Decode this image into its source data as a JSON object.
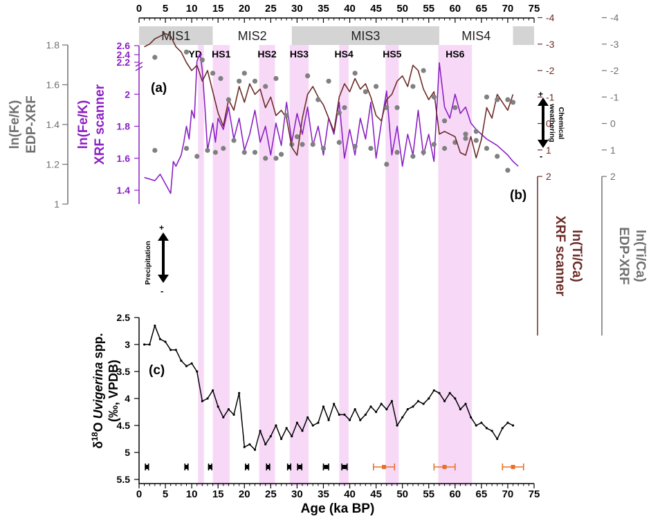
{
  "chart_data": [
    {
      "type": "line",
      "panel_label": "(a)",
      "ylabel_left_outer": [
        "ln(Fe/K)",
        "EDP-XRF"
      ],
      "ylabel_left_inner": [
        "ln(Fe/K)",
        "XRF scanner"
      ],
      "edp_ticks": [
        "1",
        "1.2",
        "1.4",
        "1.6",
        "1.8"
      ],
      "xrf_ticks": [
        "1.4",
        "1.6",
        "1.8",
        "2",
        "2.2",
        "2.4",
        "2.6"
      ],
      "annotation": {
        "plus": "+",
        "minus": "-",
        "lines": [
          "Chemical",
          "weathering"
        ]
      },
      "series": [
        {
          "name": "",
          "color": "#8B1FC4",
          "x": [
            1,
            2,
            3,
            4,
            5,
            6,
            6.5,
            7,
            8,
            8.5,
            9,
            9.5,
            10,
            10.5,
            11,
            11.3,
            11.6,
            12,
            12.5,
            13,
            14,
            14.5,
            15,
            16,
            17,
            18,
            19,
            20,
            21,
            22,
            23,
            24,
            25,
            26,
            27,
            28,
            29,
            30,
            31,
            32,
            33,
            34,
            35,
            36,
            37,
            38,
            39,
            40,
            41,
            42,
            43,
            44,
            45,
            46,
            47,
            48,
            49,
            50,
            51,
            52,
            53,
            54,
            55,
            56,
            57,
            58,
            59,
            60,
            61,
            62,
            63,
            64,
            65,
            66,
            67,
            68,
            69,
            70,
            71,
            72
          ],
          "y": [
            1.48,
            1.47,
            1.46,
            1.5,
            1.44,
            1.38,
            1.58,
            1.55,
            1.62,
            1.7,
            1.8,
            1.72,
            1.9,
            1.85,
            2.25,
            2.35,
            2.42,
            2.15,
            1.92,
            1.65,
            1.82,
            1.7,
            1.85,
            1.78,
            1.92,
            1.72,
            1.85,
            1.65,
            1.75,
            1.9,
            1.7,
            1.8,
            1.62,
            1.82,
            1.68,
            1.95,
            1.7,
            1.88,
            1.75,
            1.92,
            1.68,
            1.8,
            1.62,
            1.85,
            1.75,
            1.95,
            1.6,
            1.78,
            1.62,
            1.85,
            1.72,
            1.95,
            1.6,
            1.82,
            2.02,
            1.62,
            1.8,
            1.55,
            1.75,
            1.62,
            1.9,
            1.62,
            1.75,
            1.58,
            2.22,
            1.92,
            1.85,
            2.0,
            1.88,
            1.92,
            1.82,
            1.78,
            1.75,
            1.72,
            1.7,
            1.68,
            1.65,
            1.62,
            1.58,
            1.55
          ]
        },
        {
          "name": "",
          "color": "#808080",
          "x": [
            3,
            9,
            11,
            13,
            14.5,
            16,
            18,
            20,
            22,
            24,
            26,
            27,
            29,
            31,
            33,
            35,
            38,
            41,
            44,
            47,
            49,
            52,
            54,
            56,
            58,
            60,
            62,
            64,
            66,
            68,
            70
          ],
          "y": [
            1.27,
            1.28,
            1.24,
            1.27,
            1.26,
            1.28,
            1.32,
            1.26,
            1.26,
            1.23,
            1.23,
            1.25,
            1.3,
            1.3,
            1.3,
            1.28,
            1.31,
            1.29,
            1.28,
            1.2,
            1.26,
            1.24,
            1.26,
            1.3,
            1.28,
            1.31,
            1.33,
            1.32,
            1.28,
            1.24,
            1.17
          ]
        }
      ]
    },
    {
      "type": "line",
      "panel_label": "(b)",
      "ylabel_right_inner": [
        "ln(Ti/Ca)",
        "XRF scanner"
      ],
      "ylabel_right_outer": [
        "ln(Ti/Ca)",
        "EDP-XRF"
      ],
      "ticks": [
        "-4",
        "-3",
        "-2",
        "-1",
        "0",
        "1",
        "2"
      ],
      "annotation": {
        "plus": "+",
        "minus": "-",
        "lines": [
          "Precipitation"
        ]
      },
      "series": [
        {
          "name": "",
          "color": "#6B2B25",
          "x": [
            1,
            2,
            3,
            4,
            5,
            6,
            7,
            8,
            9,
            10,
            11,
            12,
            13,
            14,
            15,
            16,
            17,
            18,
            19,
            20,
            21,
            22,
            23,
            24,
            25,
            26,
            27,
            28,
            29,
            30,
            31,
            32,
            33,
            34,
            35,
            36,
            37,
            38,
            39,
            40,
            41,
            42,
            43,
            44,
            45,
            46,
            47,
            48,
            49,
            50,
            51,
            52,
            53,
            54,
            55,
            56,
            57,
            58,
            59,
            60,
            61,
            62,
            63,
            64,
            65,
            66,
            67,
            68,
            69,
            70,
            71
          ],
          "y": [
            -2.9,
            -3.0,
            -3.2,
            -3.3,
            -3.4,
            -3.3,
            -2.9,
            -2.7,
            -2.3,
            -2.0,
            -2.2,
            -1.6,
            -2.0,
            -1.2,
            -0.4,
            0.1,
            -0.9,
            -0.5,
            -1.4,
            -0.8,
            -1.5,
            -1.1,
            -1.3,
            -0.6,
            -1.0,
            -0.3,
            -0.5,
            -0.2,
            0.9,
            1.2,
            -0.2,
            -1.1,
            -1.4,
            -1.0,
            -0.7,
            -0.2,
            0.3,
            -1.0,
            -1.5,
            -1.2,
            -1.7,
            -1.3,
            -1.5,
            -1.0,
            -0.3,
            -0.1,
            -0.9,
            -1.1,
            -1.6,
            -1.8,
            -1.4,
            -2.2,
            -2.0,
            -1.3,
            -0.9,
            -1.2,
            0.4,
            0.3,
            0.4,
            0.5,
            1.1,
            1.2,
            0.5,
            1.3,
            0.6,
            -0.6,
            -0.2,
            -1.1,
            -0.8,
            -0.5,
            -1.1
          ]
        },
        {
          "name": "",
          "color": "#808080",
          "x": [
            3,
            9,
            12,
            14,
            15.5,
            17,
            19,
            20,
            22,
            24,
            26,
            28,
            30,
            32,
            34,
            36,
            38,
            39,
            41,
            43,
            45,
            47,
            49,
            52,
            54,
            56,
            58,
            60,
            62,
            64,
            66,
            68,
            70,
            71
          ],
          "y": [
            -2.5,
            -2.7,
            -2.4,
            -1.9,
            -1.7,
            -0.9,
            -1.6,
            -1.9,
            -1.6,
            -1.4,
            -1.7,
            -0.3,
            0.5,
            -1.8,
            -0.9,
            -1.6,
            -0.4,
            -0.6,
            -1.9,
            -1.2,
            -1.4,
            -0.6,
            -0.6,
            -1.4,
            -2.0,
            -1.0,
            -0.1,
            -0.6,
            0.4,
            0.3,
            -1.0,
            -0.9,
            -0.9,
            -0.8
          ]
        }
      ]
    },
    {
      "type": "line",
      "panel_label": "(c)",
      "ylabel": [
        "δ¹⁸O Uvigerina spp.",
        "(‰, VPDB)"
      ],
      "ylabel_parts": {
        "delta": "δ",
        "sup": "18",
        "o": "O ",
        "genus": "Uvigerina",
        "rest": " spp.",
        "line2": "(‰, VPDB)"
      },
      "ticks": [
        "2.5",
        "3",
        "3.5",
        "4",
        "4.5",
        "5",
        "5.5"
      ],
      "ylim": [
        5.5,
        2.5
      ],
      "series": [
        {
          "name": "",
          "color": "#000000",
          "x": [
            1,
            2,
            3,
            4,
            5,
            6,
            7,
            8,
            9,
            10,
            11,
            12,
            13,
            14,
            15,
            16,
            17,
            18,
            19,
            20,
            21,
            22,
            23,
            24,
            25,
            26,
            27,
            28,
            29,
            30,
            31,
            32,
            33,
            34,
            35,
            36,
            37,
            38,
            39,
            40,
            41,
            42,
            43,
            44,
            45,
            46,
            47,
            48,
            49,
            50,
            51,
            52,
            53,
            54,
            55,
            56,
            57,
            58,
            59,
            60,
            61,
            62,
            63,
            64,
            65,
            66,
            67,
            68,
            69,
            70,
            71
          ],
          "y": [
            3.0,
            3.0,
            2.65,
            2.9,
            2.95,
            3.1,
            3.1,
            3.3,
            3.4,
            3.35,
            3.5,
            4.05,
            4.0,
            3.85,
            4.15,
            4.35,
            4.2,
            4.3,
            3.9,
            4.9,
            4.85,
            4.95,
            4.6,
            4.85,
            4.7,
            4.5,
            4.75,
            4.55,
            4.7,
            4.45,
            4.6,
            4.35,
            4.5,
            4.45,
            4.15,
            4.4,
            4.1,
            4.3,
            4.3,
            4.4,
            4.2,
            4.4,
            4.3,
            4.15,
            4.25,
            4.1,
            4.2,
            4.05,
            4.5,
            4.35,
            4.2,
            4.15,
            4.05,
            4.1,
            4.0,
            3.85,
            3.9,
            4.05,
            3.9,
            4.0,
            4.2,
            4.1,
            4.35,
            4.5,
            4.45,
            4.55,
            4.6,
            4.75,
            4.55,
            4.45,
            4.5
          ]
        }
      ],
      "dating_points": [
        {
          "age": 1.5,
          "err": 0.3,
          "color": "#000000"
        },
        {
          "age": 9,
          "err": 0.3,
          "color": "#000000"
        },
        {
          "age": 13.5,
          "err": 0.3,
          "color": "#000000"
        },
        {
          "age": 20.5,
          "err": 0.3,
          "color": "#000000"
        },
        {
          "age": 24.5,
          "err": 0.3,
          "color": "#000000"
        },
        {
          "age": 28.5,
          "err": 0.3,
          "color": "#000000"
        },
        {
          "age": 30.5,
          "err": 0.4,
          "color": "#000000"
        },
        {
          "age": 35.5,
          "err": 0.5,
          "color": "#000000"
        },
        {
          "age": 39,
          "err": 0.5,
          "color": "#000000"
        },
        {
          "age": 46.5,
          "err": 2.0,
          "color": "#E8702A"
        },
        {
          "age": 58,
          "err": 2.0,
          "color": "#E8702A"
        },
        {
          "age": 71,
          "err": 2.0,
          "color": "#E8702A"
        }
      ]
    }
  ],
  "x_axis": {
    "label": "Age (ka BP)",
    "ticks": [
      0,
      5,
      10,
      15,
      20,
      25,
      30,
      35,
      40,
      45,
      50,
      55,
      60,
      65,
      70,
      75
    ],
    "range": [
      0,
      75
    ]
  },
  "mis_stages": [
    {
      "label": "MIS1",
      "start": 0,
      "end": 14,
      "fill": "#d4d4d4"
    },
    {
      "label": "MIS2",
      "start": 14,
      "end": 29,
      "fill": "#ffffff"
    },
    {
      "label": "MIS3",
      "start": 29,
      "end": 57,
      "fill": "#d4d4d4"
    },
    {
      "label": "MIS4",
      "start": 57,
      "end": 71,
      "fill": "#ffffff"
    },
    {
      "label": "",
      "start": 71,
      "end": 75,
      "fill": "#d4d4d4"
    }
  ],
  "events": [
    {
      "label": "YD",
      "start": 11.2,
      "end": 12.3
    },
    {
      "label": "HS1",
      "start": 14,
      "end": 17.2
    },
    {
      "label": "HS2",
      "start": 22.8,
      "end": 25.8
    },
    {
      "label": "HS3",
      "start": 28.6,
      "end": 32.2
    },
    {
      "label": "HS4",
      "start": 38,
      "end": 39.8
    },
    {
      "label": "HS5",
      "start": 46.8,
      "end": 49.3
    },
    {
      "label": "HS6",
      "start": 56.8,
      "end": 63.2
    }
  ],
  "colors": {
    "event_band": "#F7D9F7",
    "xrf_fe_k": "#8B1FC4",
    "xrf_ti_ca": "#6B2B25",
    "edp": "#808080",
    "d18o": "#000000",
    "dating_old": "#E8702A"
  }
}
